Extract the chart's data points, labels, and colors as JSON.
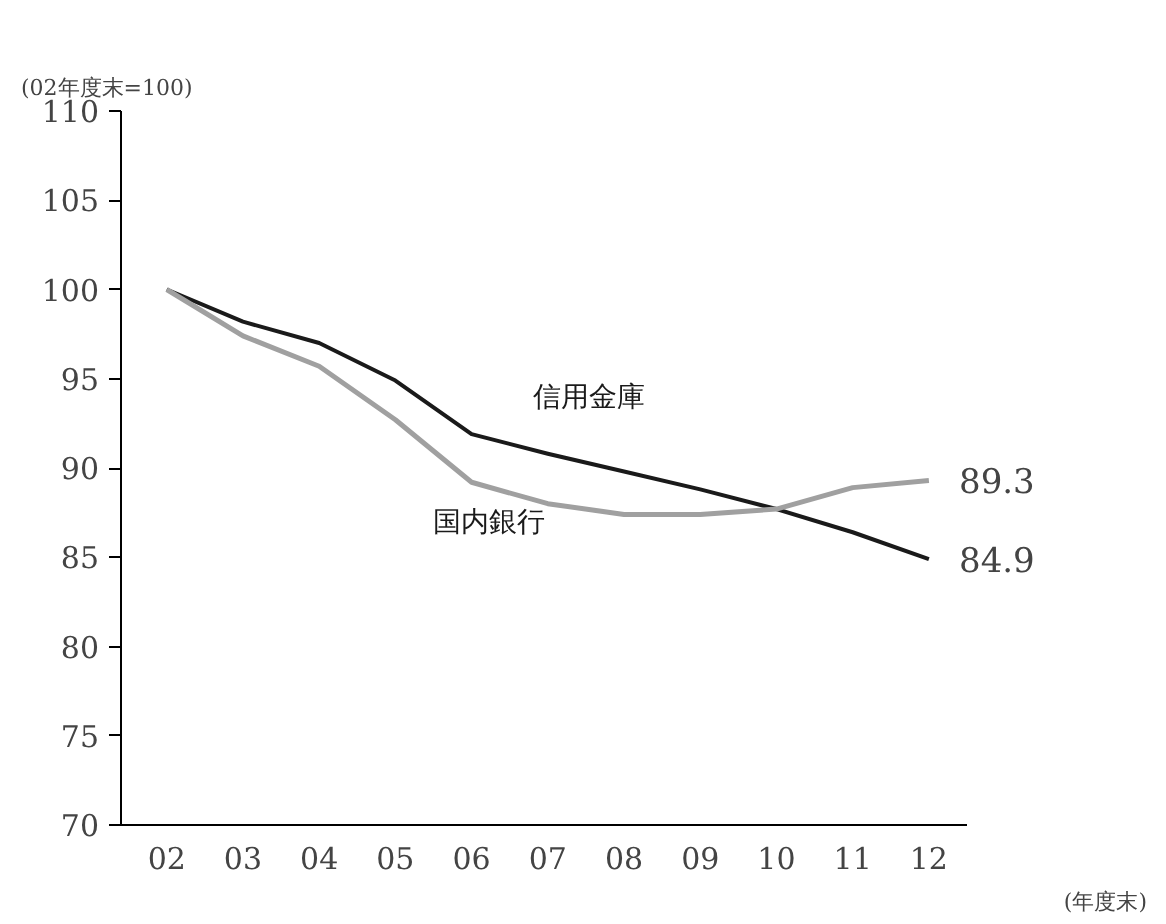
{
  "chart_data": {
    "type": "line",
    "ylabel": "(02年度末=100)",
    "xlabel": "(年度末)",
    "categories": [
      "02",
      "03",
      "04",
      "05",
      "06",
      "07",
      "08",
      "09",
      "10",
      "11",
      "12"
    ],
    "ylim": [
      70,
      110
    ],
    "yticks": [
      70,
      75,
      80,
      85,
      90,
      95,
      100,
      105,
      110
    ],
    "grid": false,
    "series": [
      {
        "name": "信用金庫",
        "color": "#1a1a1a",
        "values": [
          100,
          98.2,
          97.0,
          94.9,
          91.9,
          90.8,
          89.8,
          88.8,
          87.7,
          86.4,
          84.9
        ]
      },
      {
        "name": "国内銀行",
        "color": "#a0a0a0",
        "values": [
          100,
          97.4,
          95.7,
          92.7,
          89.2,
          88.0,
          87.4,
          87.4,
          87.7,
          88.9,
          89.3
        ]
      }
    ],
    "annotations": [
      {
        "text": "89.3",
        "x": "12",
        "y": 89.3
      },
      {
        "text": "84.9",
        "x": "12",
        "y": 84.9
      }
    ]
  }
}
